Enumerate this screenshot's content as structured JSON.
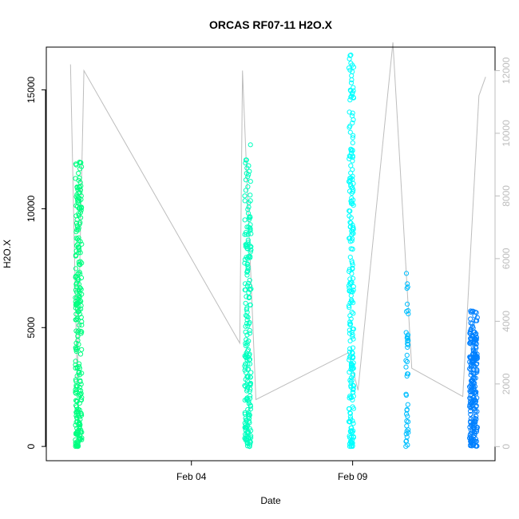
{
  "chart_data": {
    "type": "scatter",
    "title": "ORCAS RF07-11 H2O.X",
    "xlabel": "Date",
    "ylabel": "H2O.X",
    "x_ticks": [
      "Feb 04",
      "Feb 09"
    ],
    "y_ticks_left": [
      "0",
      "5000",
      "10000",
      "15000"
    ],
    "y_ticks_right": [
      "0",
      "2000",
      "4000",
      "6000",
      "8000",
      "10000",
      "12000"
    ],
    "xlim": [
      "2016-01-30 12:00",
      "2016-02-13 10:00"
    ],
    "ylim_left": [
      -600,
      16800
    ],
    "ylim_right": [
      -450,
      12750
    ],
    "grid": false,
    "colors": {
      "RF07": "#00ff80",
      "RF08": "#00ffbf",
      "RF09": "#00ffff",
      "RF10": "#00bfff",
      "RF11": "#0080ff",
      "line": "#bdbdbd"
    },
    "series": [
      {
        "x": "2016-01-31 12:00",
        "y_range": [
          0,
          12000
        ]
      },
      {
        "x": "2016-02-05 18:00",
        "y_range": [
          0,
          12800
        ]
      },
      {
        "x": "2016-02-08 23:00",
        "y_range": [
          0,
          16500
        ]
      },
      {
        "x": "2016-02-10 16:30",
        "y_range": [
          0,
          7500
        ]
      },
      {
        "x": "2016-02-12 18:00",
        "y_range": [
          0,
          5700
        ]
      }
    ],
    "secondary_line": [
      {
        "x": "2016-01-31 06:00",
        "y": 12200
      },
      {
        "x": "2016-01-31 11:00",
        "y": 2000
      },
      {
        "x": "2016-01-31 16:00",
        "y": 12000
      },
      {
        "x": "2016-02-05 12:00",
        "y": 3300
      },
      {
        "x": "2016-02-05 14:00",
        "y": 12000
      },
      {
        "x": "2016-02-06 00:00",
        "y": 1500
      },
      {
        "x": "2016-02-08 21:00",
        "y": 3000
      },
      {
        "x": "2016-02-09 04:00",
        "y": 1800
      },
      {
        "x": "2016-02-10 06:00",
        "y": 12900
      },
      {
        "x": "2016-02-10 20:00",
        "y": 2500
      },
      {
        "x": "2016-02-12 10:00",
        "y": 1600
      },
      {
        "x": "2016-02-12 22:00",
        "y": 11200
      },
      {
        "x": "2016-02-13 03:00",
        "y": 11800
      }
    ]
  }
}
